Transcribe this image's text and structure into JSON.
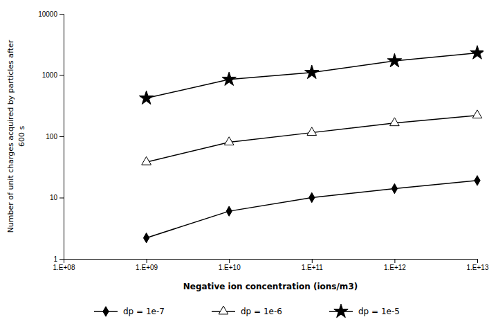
{
  "chart_data": {
    "type": "line",
    "xlabel": "Negative ion concentration (ions/m3)",
    "ylabel": [
      "Number of unit charges acquired by particles after",
      "600 s"
    ],
    "log": true,
    "grid": false,
    "legend": "bottom",
    "xlim": [
      100000000,
      10000000000000
    ],
    "ylim": [
      1,
      10000
    ],
    "xticks": [
      {
        "value": 100000000,
        "label": "1.E+08"
      },
      {
        "value": 1000000000,
        "label": "1.E+09"
      },
      {
        "value": 10000000000,
        "label": "1.E+10"
      },
      {
        "value": 100000000000,
        "label": "1.E+11"
      },
      {
        "value": 1000000000000,
        "label": "1.E+12"
      },
      {
        "value": 10000000000000,
        "label": "1.E+13"
      }
    ],
    "yticks": [
      1,
      10,
      100,
      1000,
      10000
    ],
    "x": [
      1000000000,
      10000000000,
      100000000000,
      1000000000000,
      10000000000000
    ],
    "series": [
      {
        "name": "dp = 1e-7",
        "color": "#000000",
        "marker": "diamond",
        "values": [
          2.2,
          6.0,
          10.0,
          14.0,
          19.0
        ]
      },
      {
        "name": "dp = 1e-6",
        "color": "#000000",
        "marker": "triangle-open",
        "values": [
          38.0,
          80.0,
          115.0,
          165.0,
          220.0
        ]
      },
      {
        "name": "dp = 1e-5",
        "color": "#000000",
        "marker": "star",
        "values": [
          420.0,
          850.0,
          1100.0,
          1700.0,
          2300.0
        ]
      }
    ]
  }
}
